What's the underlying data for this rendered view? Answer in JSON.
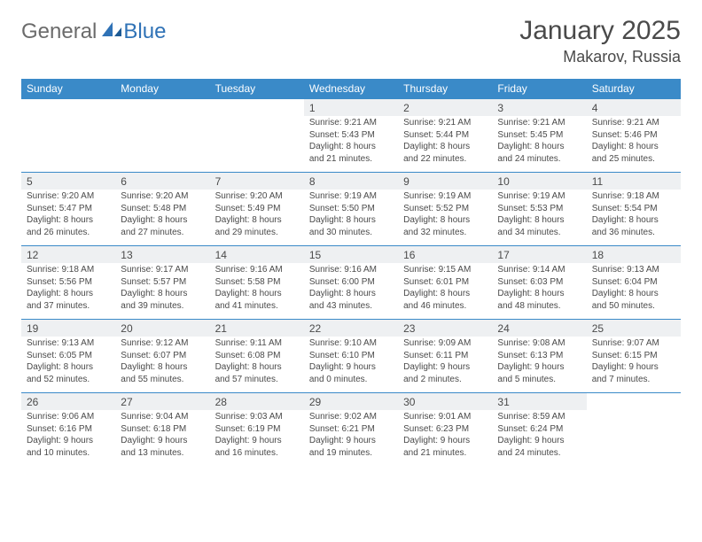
{
  "brand": {
    "word1": "General",
    "word2": "Blue"
  },
  "title": "January 2025",
  "location": "Makarov, Russia",
  "colors": {
    "header_bg": "#3a8ac8",
    "header_fg": "#ffffff",
    "daynum_bg": "#eef0f2",
    "border": "#3a8ac8",
    "text": "#4a4a4a",
    "brand_gray": "#6b6b6b",
    "brand_blue": "#2f72b6"
  },
  "typography": {
    "title_size": 30,
    "location_size": 18,
    "th_size": 12,
    "daynum_size": 12,
    "detail_size": 10
  },
  "weekdays": [
    "Sunday",
    "Monday",
    "Tuesday",
    "Wednesday",
    "Thursday",
    "Friday",
    "Saturday"
  ],
  "weeks": [
    [
      null,
      null,
      null,
      {
        "n": "1",
        "sr": "9:21 AM",
        "ss": "5:43 PM",
        "dl": "8 hours and 21 minutes."
      },
      {
        "n": "2",
        "sr": "9:21 AM",
        "ss": "5:44 PM",
        "dl": "8 hours and 22 minutes."
      },
      {
        "n": "3",
        "sr": "9:21 AM",
        "ss": "5:45 PM",
        "dl": "8 hours and 24 minutes."
      },
      {
        "n": "4",
        "sr": "9:21 AM",
        "ss": "5:46 PM",
        "dl": "8 hours and 25 minutes."
      }
    ],
    [
      {
        "n": "5",
        "sr": "9:20 AM",
        "ss": "5:47 PM",
        "dl": "8 hours and 26 minutes."
      },
      {
        "n": "6",
        "sr": "9:20 AM",
        "ss": "5:48 PM",
        "dl": "8 hours and 27 minutes."
      },
      {
        "n": "7",
        "sr": "9:20 AM",
        "ss": "5:49 PM",
        "dl": "8 hours and 29 minutes."
      },
      {
        "n": "8",
        "sr": "9:19 AM",
        "ss": "5:50 PM",
        "dl": "8 hours and 30 minutes."
      },
      {
        "n": "9",
        "sr": "9:19 AM",
        "ss": "5:52 PM",
        "dl": "8 hours and 32 minutes."
      },
      {
        "n": "10",
        "sr": "9:19 AM",
        "ss": "5:53 PM",
        "dl": "8 hours and 34 minutes."
      },
      {
        "n": "11",
        "sr": "9:18 AM",
        "ss": "5:54 PM",
        "dl": "8 hours and 36 minutes."
      }
    ],
    [
      {
        "n": "12",
        "sr": "9:18 AM",
        "ss": "5:56 PM",
        "dl": "8 hours and 37 minutes."
      },
      {
        "n": "13",
        "sr": "9:17 AM",
        "ss": "5:57 PM",
        "dl": "8 hours and 39 minutes."
      },
      {
        "n": "14",
        "sr": "9:16 AM",
        "ss": "5:58 PM",
        "dl": "8 hours and 41 minutes."
      },
      {
        "n": "15",
        "sr": "9:16 AM",
        "ss": "6:00 PM",
        "dl": "8 hours and 43 minutes."
      },
      {
        "n": "16",
        "sr": "9:15 AM",
        "ss": "6:01 PM",
        "dl": "8 hours and 46 minutes."
      },
      {
        "n": "17",
        "sr": "9:14 AM",
        "ss": "6:03 PM",
        "dl": "8 hours and 48 minutes."
      },
      {
        "n": "18",
        "sr": "9:13 AM",
        "ss": "6:04 PM",
        "dl": "8 hours and 50 minutes."
      }
    ],
    [
      {
        "n": "19",
        "sr": "9:13 AM",
        "ss": "6:05 PM",
        "dl": "8 hours and 52 minutes."
      },
      {
        "n": "20",
        "sr": "9:12 AM",
        "ss": "6:07 PM",
        "dl": "8 hours and 55 minutes."
      },
      {
        "n": "21",
        "sr": "9:11 AM",
        "ss": "6:08 PM",
        "dl": "8 hours and 57 minutes."
      },
      {
        "n": "22",
        "sr": "9:10 AM",
        "ss": "6:10 PM",
        "dl": "9 hours and 0 minutes."
      },
      {
        "n": "23",
        "sr": "9:09 AM",
        "ss": "6:11 PM",
        "dl": "9 hours and 2 minutes."
      },
      {
        "n": "24",
        "sr": "9:08 AM",
        "ss": "6:13 PM",
        "dl": "9 hours and 5 minutes."
      },
      {
        "n": "25",
        "sr": "9:07 AM",
        "ss": "6:15 PM",
        "dl": "9 hours and 7 minutes."
      }
    ],
    [
      {
        "n": "26",
        "sr": "9:06 AM",
        "ss": "6:16 PM",
        "dl": "9 hours and 10 minutes."
      },
      {
        "n": "27",
        "sr": "9:04 AM",
        "ss": "6:18 PM",
        "dl": "9 hours and 13 minutes."
      },
      {
        "n": "28",
        "sr": "9:03 AM",
        "ss": "6:19 PM",
        "dl": "9 hours and 16 minutes."
      },
      {
        "n": "29",
        "sr": "9:02 AM",
        "ss": "6:21 PM",
        "dl": "9 hours and 19 minutes."
      },
      {
        "n": "30",
        "sr": "9:01 AM",
        "ss": "6:23 PM",
        "dl": "9 hours and 21 minutes."
      },
      {
        "n": "31",
        "sr": "8:59 AM",
        "ss": "6:24 PM",
        "dl": "9 hours and 24 minutes."
      },
      null
    ]
  ],
  "labels": {
    "sunrise": "Sunrise:",
    "sunset": "Sunset:",
    "daylight": "Daylight:"
  }
}
